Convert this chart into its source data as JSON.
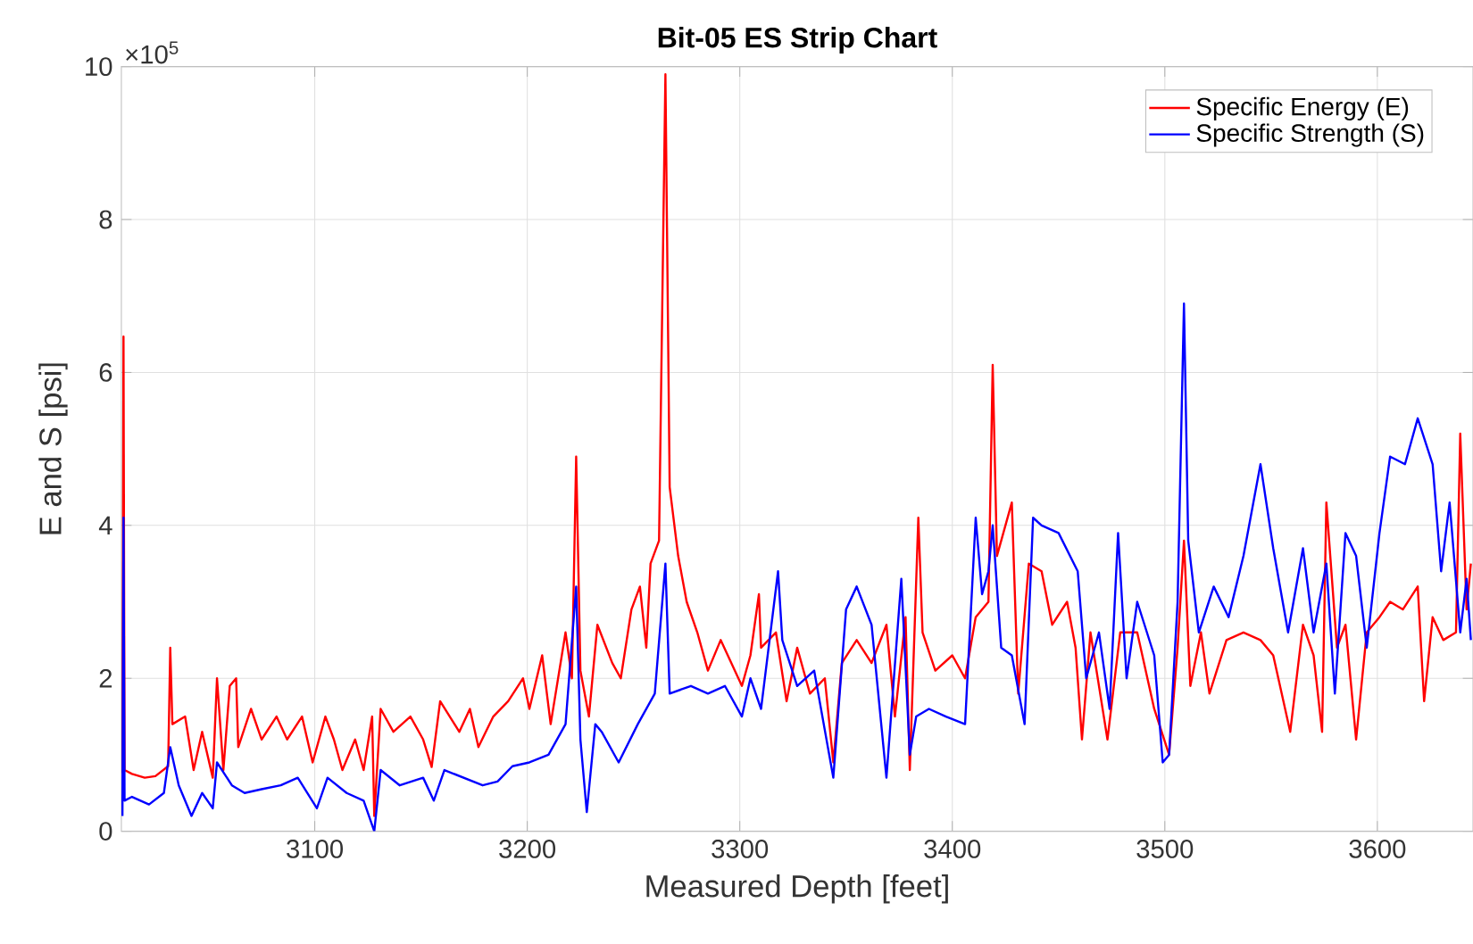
{
  "chart_data": {
    "type": "line",
    "title": "Bit-05 ES Strip Chart",
    "xlabel": "Measured Depth [feet]",
    "ylabel": "E and S [psi]",
    "annotations": [
      "×10$^{5}$"
    ],
    "xlim": [
      3009,
      3645
    ],
    "xticks": [
      3100,
      3200,
      3300,
      3400,
      3500,
      3600
    ],
    "ylim": [
      0,
      10
    ],
    "yticks": [
      0,
      2,
      4,
      6,
      8,
      10
    ],
    "grid": true,
    "legend": "top right",
    "series": [
      {
        "name": "Specific Energy (E)",
        "color": "#ff0000",
        "x": [
          3009.5,
          3010,
          3010.5,
          3014,
          3020,
          3025,
          3031,
          3032,
          3033,
          3039,
          3043,
          3047,
          3052,
          3054,
          3057,
          3060,
          3063,
          3064,
          3070,
          3075,
          3082,
          3087,
          3094,
          3099,
          3105,
          3109,
          3113,
          3119,
          3123,
          3127,
          3128,
          3131,
          3137,
          3145,
          3151,
          3155,
          3159,
          3168,
          3173,
          3177,
          3184,
          3191,
          3198,
          3201,
          3207,
          3211,
          3218,
          3221,
          3223,
          3225,
          3229,
          3233,
          3240,
          3244,
          3249,
          3253,
          3256,
          3258,
          3262,
          3265,
          3267,
          3271,
          3275,
          3280,
          3285,
          3291,
          3296,
          3301,
          3305,
          3309,
          3310,
          3317,
          3322,
          3327,
          3333,
          3340,
          3344,
          3348,
          3355,
          3362,
          3369,
          3373,
          3378,
          3380,
          3384,
          3386,
          3392,
          3400,
          3406,
          3411,
          3417,
          3419,
          3421,
          3428,
          3431,
          3436,
          3442,
          3447,
          3454,
          3458,
          3461,
          3465,
          3473,
          3479,
          3487,
          3495,
          3502,
          3506,
          3509,
          3512,
          3517,
          3521,
          3529,
          3537,
          3545,
          3551,
          3559,
          3565,
          3570,
          3574,
          3576,
          3581,
          3585,
          3590,
          3595,
          3601,
          3606,
          3612,
          3619,
          3622,
          3626,
          3631,
          3637,
          3639,
          3642,
          3644
        ],
        "values": [
          0.76,
          6.47,
          0.8,
          0.75,
          0.7,
          0.72,
          0.85,
          2.4,
          1.4,
          1.5,
          0.8,
          1.3,
          0.7,
          2.0,
          0.8,
          1.9,
          2.0,
          1.1,
          1.6,
          1.2,
          1.5,
          1.2,
          1.5,
          0.9,
          1.5,
          1.2,
          0.8,
          1.2,
          0.8,
          1.5,
          0.2,
          1.6,
          1.3,
          1.5,
          1.2,
          0.84,
          1.7,
          1.3,
          1.6,
          1.1,
          1.5,
          1.7,
          2.0,
          1.6,
          2.3,
          1.4,
          2.6,
          2.0,
          4.9,
          2.1,
          1.5,
          2.7,
          2.2,
          2.0,
          2.9,
          3.2,
          2.4,
          3.5,
          3.8,
          9.9,
          4.5,
          3.6,
          3.0,
          2.6,
          2.1,
          2.5,
          2.2,
          1.9,
          2.3,
          3.1,
          2.4,
          2.6,
          1.7,
          2.4,
          1.8,
          2.0,
          0.9,
          2.2,
          2.5,
          2.2,
          2.7,
          1.5,
          2.8,
          0.8,
          4.1,
          2.6,
          2.1,
          2.3,
          2.0,
          2.8,
          3.0,
          6.1,
          3.6,
          4.3,
          1.8,
          3.5,
          3.4,
          2.7,
          3.0,
          2.4,
          1.2,
          2.6,
          1.2,
          2.6,
          2.6,
          1.6,
          1.0,
          2.4,
          3.8,
          1.9,
          2.6,
          1.8,
          2.5,
          2.6,
          2.5,
          2.3,
          1.3,
          2.7,
          2.3,
          1.3,
          4.3,
          2.4,
          2.7,
          1.2,
          2.6,
          2.8,
          3.0,
          2.9,
          3.2,
          1.7,
          2.8,
          2.5,
          2.6,
          5.2,
          2.9,
          3.5
        ]
      },
      {
        "name": "Specific Strength (S)",
        "color": "#0000ff",
        "x": [
          3009.5,
          3010,
          3010.5,
          3014,
          3022,
          3029,
          3032,
          3036,
          3042,
          3047,
          3052,
          3054,
          3061,
          3067,
          3075,
          3084,
          3092,
          3101,
          3106,
          3115,
          3123,
          3128,
          3131,
          3140,
          3151,
          3156,
          3161,
          3170,
          3179,
          3186,
          3193,
          3201,
          3210,
          3218,
          3223,
          3225,
          3228,
          3232,
          3235,
          3243,
          3252,
          3260,
          3265,
          3267,
          3277,
          3285,
          3293,
          3301,
          3305,
          3310,
          3318,
          3320,
          3327,
          3335,
          3344,
          3350,
          3355,
          3362,
          3369,
          3376,
          3380,
          3383,
          3389,
          3397,
          3406,
          3411,
          3414,
          3417,
          3419,
          3423,
          3428,
          3434,
          3438,
          3442,
          3450,
          3459,
          3463,
          3469,
          3474,
          3478,
          3482,
          3487,
          3495,
          3499,
          3502,
          3506,
          3509,
          3511,
          3516,
          3523,
          3530,
          3537,
          3545,
          3551,
          3558,
          3565,
          3570,
          3576,
          3580,
          3585,
          3590,
          3595,
          3601,
          3606,
          3613,
          3619,
          3626,
          3630,
          3634,
          3639,
          3642,
          3644
        ],
        "values": [
          0.2,
          4.1,
          0.4,
          0.45,
          0.35,
          0.5,
          1.1,
          0.6,
          0.2,
          0.5,
          0.3,
          0.9,
          0.6,
          0.5,
          0.55,
          0.6,
          0.7,
          0.3,
          0.7,
          0.5,
          0.4,
          0.0,
          0.8,
          0.6,
          0.7,
          0.4,
          0.8,
          0.7,
          0.6,
          0.65,
          0.85,
          0.9,
          1.0,
          1.4,
          3.2,
          1.2,
          0.25,
          1.4,
          1.3,
          0.9,
          1.4,
          1.8,
          3.5,
          1.8,
          1.9,
          1.8,
          1.9,
          1.5,
          2.0,
          1.6,
          3.4,
          2.5,
          1.9,
          2.1,
          0.7,
          2.9,
          3.2,
          2.7,
          0.7,
          3.3,
          1.0,
          1.5,
          1.6,
          1.5,
          1.4,
          4.1,
          3.1,
          3.4,
          4.0,
          2.4,
          2.3,
          1.4,
          4.1,
          4.0,
          3.9,
          3.4,
          2.0,
          2.6,
          1.6,
          3.9,
          2.0,
          3.0,
          2.3,
          0.9,
          1.0,
          3.0,
          6.9,
          3.8,
          2.6,
          3.2,
          2.8,
          3.6,
          4.8,
          3.7,
          2.6,
          3.7,
          2.6,
          3.5,
          1.8,
          3.9,
          3.6,
          2.4,
          3.9,
          4.9,
          4.8,
          5.4,
          4.8,
          3.4,
          4.3,
          2.6,
          3.3,
          2.5
        ]
      }
    ]
  }
}
